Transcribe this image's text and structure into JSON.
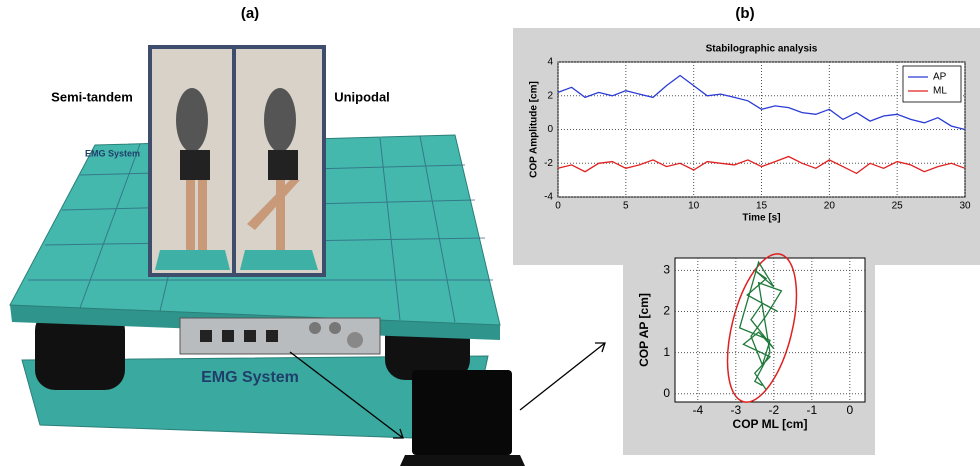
{
  "panels": [
    {
      "label": "(a)",
      "conditions": [
        "Semi-tandem",
        "Unipodal"
      ],
      "brand": "EMG System"
    },
    {
      "label": "(b)"
    }
  ],
  "chart_data": [
    {
      "type": "line",
      "title": "Stabilographic analysis",
      "x_label": "Time [s]",
      "y_label": "COP Amplitude [cm]",
      "x": [
        0,
        1,
        2,
        3,
        4,
        5,
        6,
        7,
        8,
        9,
        10,
        11,
        12,
        13,
        14,
        15,
        16,
        17,
        18,
        19,
        20,
        21,
        22,
        23,
        24,
        25,
        26,
        27,
        28,
        29,
        30
      ],
      "series": [
        {
          "name": "AP",
          "color": "#2a3bd6",
          "values": [
            2.2,
            2.5,
            1.9,
            2.2,
            2.0,
            2.3,
            2.1,
            1.9,
            2.6,
            3.2,
            2.6,
            2.0,
            2.1,
            1.9,
            1.7,
            1.2,
            1.4,
            1.3,
            1.0,
            0.9,
            1.2,
            0.6,
            1.0,
            0.5,
            0.8,
            0.9,
            0.6,
            0.4,
            0.7,
            0.2,
            0.0
          ]
        },
        {
          "name": "ML",
          "color": "#e02020",
          "values": [
            -2.3,
            -2.1,
            -2.5,
            -2.0,
            -1.9,
            -2.3,
            -2.1,
            -1.8,
            -2.2,
            -2.0,
            -2.4,
            -1.9,
            -2.0,
            -2.1,
            -1.8,
            -2.2,
            -1.9,
            -1.6,
            -2.0,
            -2.3,
            -1.8,
            -2.2,
            -2.6,
            -2.0,
            -2.3,
            -1.9,
            -2.1,
            -2.5,
            -2.2,
            -2.0,
            -2.3
          ]
        }
      ],
      "xlim": [
        0,
        30
      ],
      "xticks": [
        0,
        5,
        10,
        15,
        20,
        25,
        30
      ],
      "ylim": [
        -4,
        4
      ],
      "yticks": [
        -4,
        -2,
        0,
        2,
        4
      ],
      "grid": true,
      "legend": "upper-right"
    },
    {
      "type": "line",
      "x_label": "COP ML [cm]",
      "y_label": "COP AP [cm]",
      "x": [
        -2.2,
        -2.5,
        -2.1,
        -2.8,
        -2.4,
        -2.0,
        -2.6,
        -2.3,
        -1.9,
        -2.7,
        -2.2,
        -2.5,
        -2.0,
        -2.4,
        -2.9,
        -2.1,
        -2.3,
        -2.6,
        -2.2,
        -1.8,
        -2.4,
        -2.1,
        -2.5,
        -2.3
      ],
      "series": [
        {
          "color": "#1f7a3a",
          "values": [
            0.1,
            0.5,
            0.9,
            1.2,
            1.5,
            1.1,
            1.8,
            2.2,
            2.0,
            2.4,
            2.8,
            3.0,
            2.6,
            3.2,
            1.6,
            1.3,
            0.7,
            1.4,
            1.9,
            2.5,
            2.7,
            1.0,
            0.3,
            0.2
          ]
        }
      ],
      "xlim": [
        -4.6,
        0.4
      ],
      "xticks": [
        -4,
        -3,
        -2,
        -1,
        0
      ],
      "ylim": [
        -0.2,
        3.3
      ],
      "yticks": [
        0,
        1,
        2,
        3
      ],
      "grid": true
    }
  ]
}
